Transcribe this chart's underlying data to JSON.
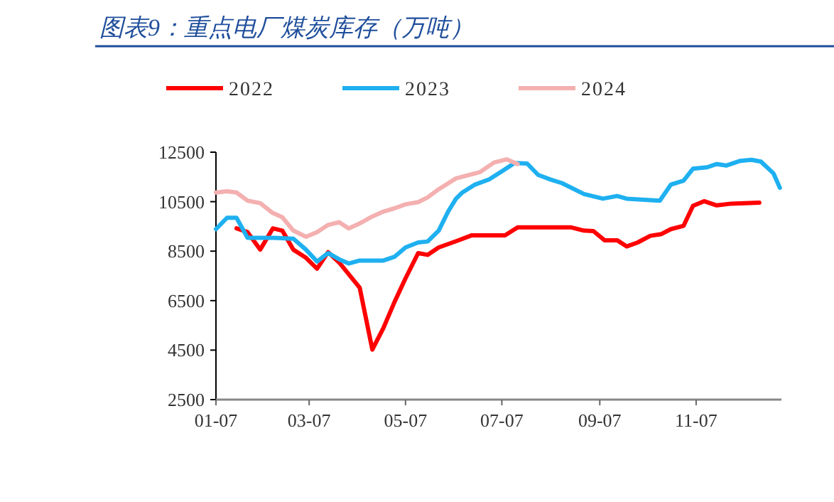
{
  "chart_data": {
    "type": "line",
    "title": "图表9：重点电厂煤炭库存（万吨）",
    "legend": "top",
    "xlim": [
      "--01-07",
      "--12-31"
    ],
    "xticks": [
      {
        "value": "--01-07",
        "label": "01-07"
      },
      {
        "value": "--03-07",
        "label": "03-07"
      },
      {
        "value": "--05-07",
        "label": "05-07"
      },
      {
        "value": "--07-07",
        "label": "07-07"
      },
      {
        "value": "--09-07",
        "label": "09-07"
      },
      {
        "value": "--11-07",
        "label": "11-07"
      }
    ],
    "ylim": [
      2500,
      12500
    ],
    "yticks": [
      2500,
      4500,
      6500,
      8500,
      10500,
      12500
    ],
    "series": [
      {
        "name": "2022",
        "color": "#ff0000",
        "x": [
          "--01-20",
          "--01-27",
          "--02-04",
          "--02-12",
          "--02-18",
          "--02-25",
          "--03-05",
          "--03-12",
          "--03-19",
          "--03-26",
          "--04-08",
          "--04-16",
          "--04-23",
          "--04-30",
          "--05-07",
          "--05-15",
          "--05-21",
          "--05-28",
          "--06-08",
          "--06-18",
          "--07-09",
          "--07-17",
          "--08-20",
          "--08-28",
          "--09-03",
          "--09-10",
          "--09-18",
          "--09-24",
          "--10-01",
          "--10-09",
          "--10-16",
          "--10-22",
          "--10-30",
          "--11-05",
          "--11-12",
          "--11-20",
          "--11-29",
          "--12-17"
        ],
        "values": [
          9420,
          9270,
          8560,
          9420,
          9330,
          8560,
          8230,
          7790,
          8460,
          8040,
          7020,
          4520,
          5390,
          6440,
          7400,
          8420,
          8350,
          8650,
          8900,
          9140,
          9140,
          9460,
          9460,
          9330,
          9310,
          8940,
          8940,
          8690,
          8850,
          9120,
          9190,
          9390,
          9520,
          10330,
          10520,
          10350,
          10420,
          10460
        ]
      },
      {
        "name": "2023",
        "color": "#1eb0f0",
        "x": [
          "--01-07",
          "--01-14",
          "--01-20",
          "--01-27",
          "--02-04",
          "--02-13",
          "--02-25",
          "--03-05",
          "--03-12",
          "--03-19",
          "--03-26",
          "--04-01",
          "--04-08",
          "--04-23",
          "--04-30",
          "--05-07",
          "--05-15",
          "--05-21",
          "--05-28",
          "--06-03",
          "--06-08",
          "--06-12",
          "--06-20",
          "--06-29",
          "--07-08",
          "--07-15",
          "--07-23",
          "--07-30",
          "--08-07",
          "--08-14",
          "--08-28",
          "--09-09",
          "--09-18",
          "--09-24",
          "--10-15",
          "--10-22",
          "--10-30",
          "--11-05",
          "--11-14",
          "--11-20",
          "--11-26",
          "--12-05",
          "--12-12",
          "--12-18",
          "--12-26",
          "--12-30"
        ],
        "values": [
          9390,
          9850,
          9850,
          9040,
          9040,
          9040,
          9000,
          8560,
          8080,
          8420,
          8170,
          8000,
          8120,
          8120,
          8270,
          8650,
          8850,
          8890,
          9330,
          10100,
          10620,
          10870,
          11190,
          11400,
          11770,
          12060,
          12040,
          11580,
          11390,
          11250,
          10810,
          10620,
          10730,
          10620,
          10540,
          11190,
          11350,
          11830,
          11890,
          12020,
          11960,
          12150,
          12190,
          12120,
          11640,
          11060
        ]
      },
      {
        "name": "2024",
        "color": "#f4b0b0",
        "x": [
          "--01-07",
          "--01-14",
          "--01-20",
          "--01-27",
          "--02-04",
          "--02-12",
          "--02-18",
          "--02-25",
          "--03-05",
          "--03-12",
          "--03-19",
          "--03-26",
          "--04-01",
          "--04-08",
          "--04-16",
          "--04-23",
          "--04-30",
          "--05-07",
          "--05-15",
          "--05-21",
          "--05-28",
          "--06-08",
          "--06-23",
          "--07-02",
          "--07-10",
          "--07-17"
        ],
        "values": [
          10870,
          10920,
          10870,
          10540,
          10440,
          10040,
          9870,
          9330,
          9080,
          9270,
          9560,
          9670,
          9420,
          9620,
          9900,
          10100,
          10230,
          10390,
          10480,
          10670,
          11000,
          11440,
          11690,
          12080,
          12210,
          12020
        ]
      }
    ]
  }
}
